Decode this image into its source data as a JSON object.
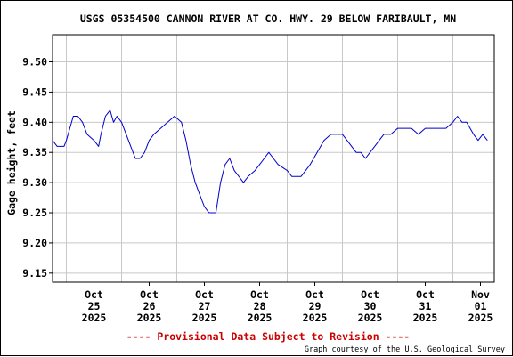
{
  "chart_data": {
    "type": "line",
    "title": "USGS 05354500 CANNON RIVER AT CO. HWY. 29 BELOW FARIBAULT, MN",
    "ylabel": "Gage height, feet",
    "xlabel": "",
    "ylim": [
      9.135,
      9.545
    ],
    "yticks": [
      "9.15",
      "9.20",
      "9.25",
      "9.30",
      "9.35",
      "9.40",
      "9.45",
      "9.50"
    ],
    "xlim": [
      "2025-10-24T18:00",
      "2025-11-01T18:00"
    ],
    "xticks": [
      {
        "line1": "Oct",
        "line2": "25",
        "line3": "2025"
      },
      {
        "line1": "Oct",
        "line2": "26",
        "line3": "2025"
      },
      {
        "line1": "Oct",
        "line2": "27",
        "line3": "2025"
      },
      {
        "line1": "Oct",
        "line2": "28",
        "line3": "2025"
      },
      {
        "line1": "Oct",
        "line2": "29",
        "line3": "2025"
      },
      {
        "line1": "Oct",
        "line2": "30",
        "line3": "2025"
      },
      {
        "line1": "Oct",
        "line2": "31",
        "line3": "2025"
      },
      {
        "line1": "Nov",
        "line2": "01",
        "line3": "2025"
      }
    ],
    "grid": true,
    "series": [
      {
        "color": "#0000cc",
        "segments": [
          {
            "x": [
              "2025-10-24T18:00",
              "2025-10-24T20:00",
              "2025-10-24T23:00",
              "2025-10-25T00:00",
              "2025-10-25T01:30",
              "2025-10-25T03:00",
              "2025-10-25T05:00",
              "2025-10-25T07:00",
              "2025-10-25T09:00",
              "2025-10-25T12:00",
              "2025-10-25T14:00",
              "2025-10-25T15:00",
              "2025-10-25T17:00",
              "2025-10-25T19:00",
              "2025-10-25T20:30",
              "2025-10-25T22:00",
              "2025-10-26T00:00",
              "2025-10-26T02:00",
              "2025-10-26T04:00",
              "2025-10-26T05:00",
              "2025-10-26T06:00",
              "2025-10-26T08:00",
              "2025-10-26T10:00",
              "2025-10-26T12:00",
              "2025-10-26T14:00",
              "2025-10-26T17:00",
              "2025-10-26T20:00",
              "2025-10-26T23:00",
              "2025-10-27T02:00",
              "2025-10-27T04:00",
              "2025-10-27T06:00",
              "2025-10-27T08:00",
              "2025-10-27T10:00",
              "2025-10-27T11:00",
              "2025-10-27T12:00",
              "2025-10-27T14:00",
              "2025-10-27T16:00",
              "2025-10-27T17:00",
              "2025-10-27T19:00",
              "2025-10-27T21:00",
              "2025-10-27T23:00",
              "2025-10-28T00:00",
              "2025-10-28T01:00",
              "2025-10-28T03:00"
            ],
            "y": [
              9.37,
              9.36,
              9.36,
              9.37,
              9.39,
              9.41,
              9.41,
              9.4,
              9.38,
              9.37,
              9.36,
              9.38,
              9.41,
              9.42,
              9.4,
              9.41,
              9.4,
              9.38,
              9.36,
              9.35,
              9.34,
              9.34,
              9.35,
              9.37,
              9.38,
              9.39,
              9.4,
              9.41,
              9.4,
              9.37,
              9.33,
              9.3,
              9.28,
              9.27,
              9.26,
              9.25,
              9.25,
              9.25,
              9.3,
              9.33,
              9.34,
              9.33,
              9.32,
              9.31
            ]
          },
          {
            "x": [
              "2025-10-28T03:00",
              "2025-10-28T05:00",
              "2025-10-28T07:00",
              "2025-10-28T10:00",
              "2025-10-28T12:00",
              "2025-10-28T14:00",
              "2025-10-28T16:00",
              "2025-10-28T18:00",
              "2025-10-28T20:00",
              "2025-10-29T00:00",
              "2025-10-29T02:00",
              "2025-10-29T04:00",
              "2025-10-29T06:00",
              "2025-10-29T08:00",
              "2025-10-29T10:00",
              "2025-10-29T13:00",
              "2025-10-29T16:00",
              "2025-10-29T19:00",
              "2025-10-29T21:00",
              "2025-10-30T00:00",
              "2025-10-30T02:00",
              "2025-10-30T04:00",
              "2025-10-30T06:00",
              "2025-10-30T08:00",
              "2025-10-30T10:00",
              "2025-10-30T12:00",
              "2025-10-30T14:00",
              "2025-10-30T16:00",
              "2025-10-30T18:00",
              "2025-10-30T21:00",
              "2025-10-31T00:00",
              "2025-10-31T03:00",
              "2025-10-31T06:00",
              "2025-10-31T09:00",
              "2025-10-31T12:00",
              "2025-10-31T15:00",
              "2025-10-31T18:00",
              "2025-10-31T21:00",
              "2025-11-01T00:00",
              "2025-11-01T02:00",
              "2025-11-01T04:00",
              "2025-11-01T06:00",
              "2025-11-01T07:30",
              "2025-11-01T09:00",
              "2025-11-01T11:00",
              "2025-11-01T13:00",
              "2025-11-01T15:00"
            ],
            "y": [
              9.31,
              9.3,
              9.31,
              9.32,
              9.33,
              9.34,
              9.35,
              9.34,
              9.33,
              9.32,
              9.31,
              9.31,
              9.31,
              9.32,
              9.33,
              9.35,
              9.37,
              9.38,
              9.38,
              9.38,
              9.37,
              9.36,
              9.35,
              9.35,
              9.34,
              9.35,
              9.36,
              9.37,
              9.38,
              9.38,
              9.39,
              9.39,
              9.39,
              9.38,
              9.39,
              9.39,
              9.39,
              9.39,
              9.4,
              9.41,
              9.4,
              9.4,
              9.39,
              9.38,
              9.37,
              9.38,
              9.37
            ]
          }
        ]
      }
    ]
  },
  "footer": {
    "provisional": "---- Provisional Data Subject to Revision ----",
    "credit": "Graph courtesy of the U.S. Geological Survey"
  },
  "colors": {
    "line": "#0000cc",
    "grid": "#c8c8c8",
    "provisional": "#cc0000"
  }
}
